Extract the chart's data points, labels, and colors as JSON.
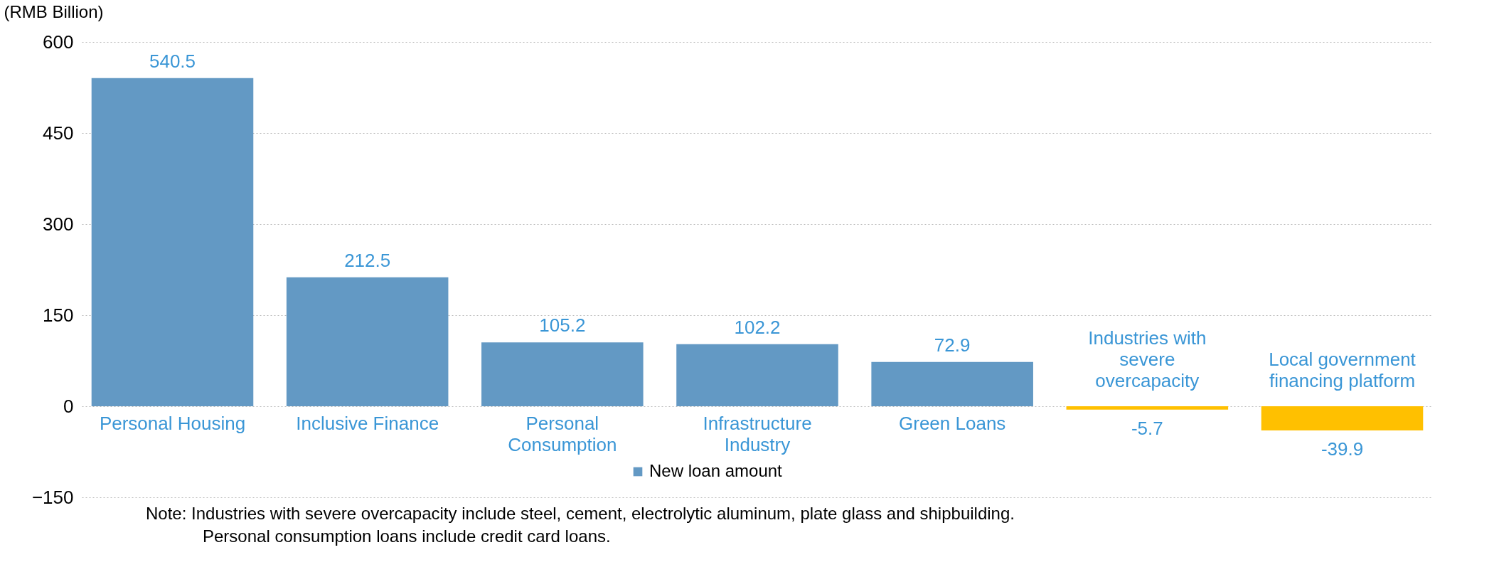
{
  "chart_data": {
    "type": "bar",
    "ylabel": "(RMB Billion)",
    "categories": [
      "Personal Housing",
      "Inclusive Finance",
      "Personal Consumption",
      "Infrastructure Industry",
      "Green Loans",
      "Industries with severe overcapacity",
      "Local government financing platform"
    ],
    "series": [
      {
        "name": "New loan amount",
        "color": "#6399c4",
        "colors": [
          "#6399c4",
          "#6399c4",
          "#6399c4",
          "#6399c4",
          "#6399c4",
          "#ffc000",
          "#ffc000"
        ],
        "values": [
          540.5,
          212.5,
          105.2,
          102.2,
          72.9,
          -5.7,
          -39.9
        ]
      }
    ],
    "ylim": [
      -150,
      600
    ],
    "yticks": [
      -150,
      0,
      150,
      300,
      450,
      600
    ],
    "grid": "y",
    "legend": "bottom",
    "data_labels": true,
    "annotations": [
      "Note: Industries with severe overcapacity include steel, cement, electrolytic aluminum, plate glass and shipbuilding.",
      "Personal consumption loans include credit card loans."
    ]
  }
}
